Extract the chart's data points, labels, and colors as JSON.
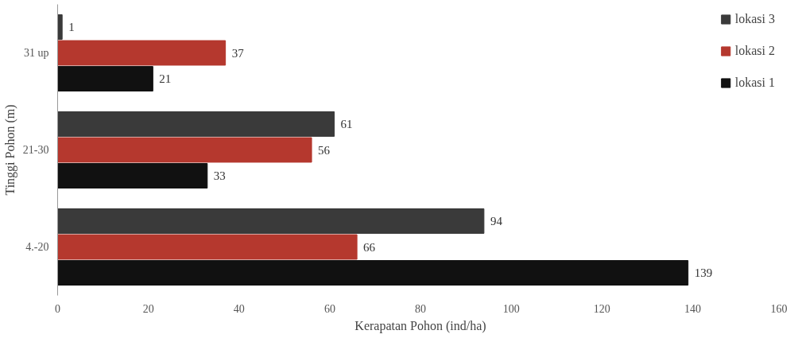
{
  "chart_data": {
    "type": "bar",
    "orientation": "horizontal",
    "xlabel": "Kerapatan Pohon (ind/ha)",
    "ylabel": "Tinggi Pohon (m)",
    "categories": [
      "31 up",
      "21-30",
      "4.-20"
    ],
    "series": [
      {
        "name": "lokasi 1",
        "color": "#111111",
        "values": [
          21,
          33,
          139
        ]
      },
      {
        "name": "lokasi 2",
        "color": "#b5382e",
        "values": [
          37,
          56,
          66
        ]
      },
      {
        "name": "lokasi 3",
        "color": "#3a3a3a",
        "values": [
          1,
          61,
          94
        ]
      }
    ],
    "xlim": [
      0,
      160
    ],
    "xticks": [
      0,
      20,
      40,
      60,
      80,
      100,
      120,
      140,
      160
    ],
    "data_labels": true,
    "legend": "top right",
    "grid": false
  }
}
